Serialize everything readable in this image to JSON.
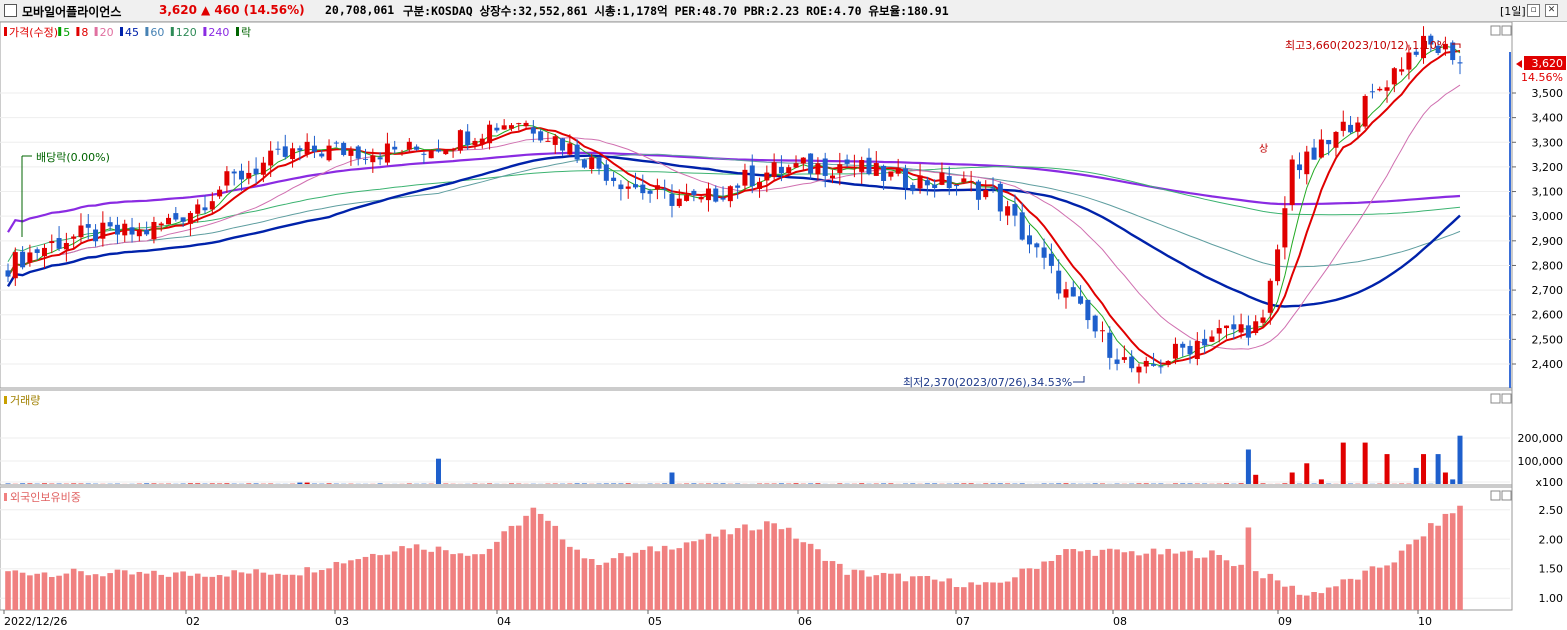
{
  "header": {
    "stock_name": "모바일어플라이언스",
    "price": "3,620",
    "change": "▲ 460 (14.56%)",
    "volume": "20,708,061",
    "info": "구분:KOSDAQ 상장수:32,552,861 시총:1,178억 PER:48.70 PBR:2.23 ROE:4.70 유보율:180.91",
    "period": "[1일]"
  },
  "price_panel": {
    "legend": [
      {
        "label": "가격(수정)",
        "color": "#e00000"
      },
      {
        "label": "5",
        "color": "#00a000"
      },
      {
        "label": "8",
        "color": "#e00000"
      },
      {
        "label": "20",
        "color": "#e070a0"
      },
      {
        "label": "45",
        "color": "#0022aa"
      },
      {
        "label": "60",
        "color": "#4682b4"
      },
      {
        "label": "120",
        "color": "#2e8b57"
      },
      {
        "label": "240",
        "color": "#8a2be2"
      },
      {
        "label": "락",
        "color": "#006400"
      }
    ],
    "annotations": {
      "high": "최고3,660(2023/10/12),1.10%",
      "low": "최저2,370(2023/07/26),34.53%",
      "dividend": "배당락(0.00%)",
      "limit_up": "상"
    },
    "current_price_label": "3,620",
    "current_change_label": "14.56%"
  },
  "volume_panel": {
    "title": "거래량"
  },
  "foreign_panel": {
    "title": "외국인보유비중"
  },
  "colors": {
    "up": "#e00000",
    "down": "#1e5fcc",
    "ma5": "#22aa22",
    "ma8": "#e00000",
    "ma20": "#d070b0",
    "ma45": "#0022aa",
    "ma60": "#5f9ea0",
    "ma120": "#3cb371",
    "ma240": "#8a2be2",
    "foreign_bar": "#f08080"
  },
  "chart_data": [
    {
      "type": "candlestick",
      "title": "가격(수정)",
      "x_tick_labels": [
        "2022/12/26",
        "02",
        "03",
        "04",
        "05",
        "06",
        "07",
        "08",
        "09",
        "10"
      ],
      "y_tick_labels": [
        "2,400",
        "2,500",
        "2,600",
        "2,700",
        "2,800",
        "2,900",
        "3,000",
        "3,100",
        "3,200",
        "3,300",
        "3,400",
        "3,500"
      ],
      "ylim": [
        2330,
        3700
      ],
      "keypoints": [
        {
          "label": "2022/12/26",
          "close": 2800
        },
        {
          "label": "2023/01 mid",
          "close": 2950
        },
        {
          "label": "2023/02",
          "close": 3150
        },
        {
          "label": "2023/03",
          "close": 3300
        },
        {
          "label": "2023/04",
          "close": 3350
        },
        {
          "label": "2023/05",
          "close": 3050
        },
        {
          "label": "2023/06",
          "close": 3250
        },
        {
          "label": "2023/07",
          "close": 3050
        },
        {
          "label": "2023/07/26 (low)",
          "close": 2370
        },
        {
          "label": "2023/08",
          "close": 2550
        },
        {
          "label": "2023/09 limit-up",
          "close": 3200
        },
        {
          "label": "2023/10/12 (high)",
          "close": 3660
        },
        {
          "label": "last",
          "close": 3620
        }
      ],
      "moving_averages": [
        "5",
        "8",
        "20",
        "45",
        "60",
        "120",
        "240"
      ]
    },
    {
      "type": "bar",
      "title": "거래량",
      "y_tick_labels": [
        "x100",
        "100,000",
        "200,000"
      ],
      "note": "mostly low volume; spikes in early April, early May and Sep–Oct, last bar about 200,000"
    },
    {
      "type": "bar",
      "title": "외국인보유비중",
      "y_tick_labels": [
        "1.00",
        "1.50",
        "2.00",
        "2.50"
      ],
      "ylim": [
        0.8,
        2.7
      ],
      "note": "ranges about 1.0–2.5; peaks mid-April (~2.5) and early October (~2.5)"
    }
  ]
}
